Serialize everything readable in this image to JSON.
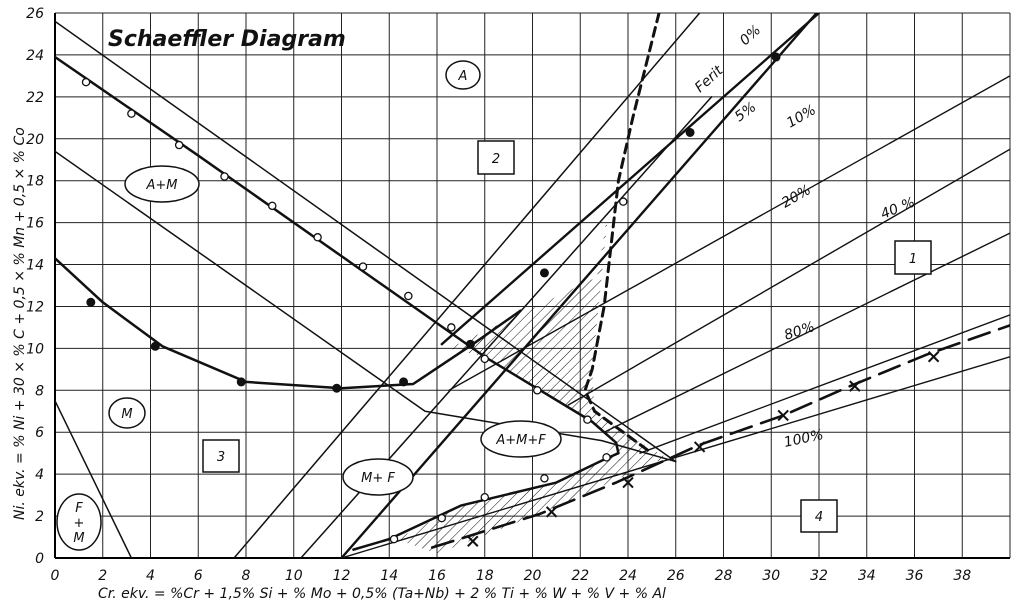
{
  "title": "Schaeffler Diagram",
  "x_axis_label": "Cr. ekv. = %Cr + 1,5% Si + % Mo + 0,5% (Ta+Nb) + 2 % Ti + % W + % V + % Al",
  "y_axis_label": "Ni. ekv. = % Ni + 30 × % C + 0,5 × % Mn + 0,5 × % Co",
  "x_ticks": [
    "0",
    "2",
    "4",
    "6",
    "8",
    "10",
    "12",
    "14",
    "16",
    "18",
    "20",
    "22",
    "24",
    "26",
    "28",
    "30",
    "32",
    "34",
    "36",
    "38"
  ],
  "y_ticks": [
    "0",
    "2",
    "4",
    "6",
    "8",
    "10",
    "12",
    "14",
    "16",
    "18",
    "20",
    "22",
    "24",
    "26"
  ],
  "phase_labels": [
    {
      "id": "A",
      "text": "A"
    },
    {
      "id": "AM",
      "text": "A+M"
    },
    {
      "id": "M",
      "text": "M"
    },
    {
      "id": "FM_top",
      "text": "F"
    },
    {
      "id": "FM_plus",
      "text": "+"
    },
    {
      "id": "FM_bot",
      "text": "M"
    },
    {
      "id": "MF",
      "text": "M+ F"
    },
    {
      "id": "AMF",
      "text": "A+M+F"
    }
  ],
  "zone_numbers": [
    "1",
    "2",
    "3",
    "4"
  ],
  "ferrite_labels": [
    "Ferit",
    "0%",
    "5%",
    "10%",
    "20%",
    "40 %",
    "80%",
    "100%"
  ],
  "chart_data": {
    "type": "diagram",
    "xlim": [
      0,
      40
    ],
    "ylim": [
      0,
      26
    ],
    "grid": true,
    "ferrite_lines": [
      {
        "name": "0%",
        "points": [
          [
            16.2,
            10.2
          ],
          [
            32.0,
            26.0
          ]
        ]
      },
      {
        "name": "5%",
        "points": [
          [
            12.0,
            0.0
          ],
          [
            31.9,
            26.0
          ]
        ]
      },
      {
        "name": "10%",
        "points": [
          [
            16.5,
            8.0
          ],
          [
            40.0,
            23.0
          ]
        ]
      },
      {
        "name": "20%",
        "points": [
          [
            21.5,
            7.3
          ],
          [
            40.0,
            19.5
          ]
        ]
      },
      {
        "name": "40 %",
        "points": [
          [
            23.0,
            6.0
          ],
          [
            40.0,
            15.5
          ]
        ]
      },
      {
        "name": "80%",
        "points": [
          [
            24.5,
            5.0
          ],
          [
            40.0,
            11.6
          ]
        ]
      },
      {
        "name": "100%",
        "points": [
          [
            12.0,
            0.0
          ],
          [
            40.0,
            9.6
          ]
        ]
      }
    ],
    "boundaries": [
      {
        "id": "upper-diagonal",
        "points": [
          [
            0,
            25.6
          ],
          [
            26.0,
            4.6
          ]
        ]
      },
      {
        "id": "austenite-martensite",
        "points": [
          [
            0,
            23.9
          ],
          [
            6,
            19.2
          ],
          [
            12,
            14.4
          ],
          [
            18,
            9.6
          ],
          [
            22.5,
            6.5
          ],
          [
            23.5,
            5.5
          ],
          [
            23.6,
            5.0
          ],
          [
            23,
            4.7
          ],
          [
            21,
            3.6
          ],
          [
            17,
            2.5
          ],
          [
            14,
            0.9
          ],
          [
            12.5,
            0.4
          ]
        ]
      },
      {
        "id": "lower-diagonal",
        "points": [
          [
            0,
            19.4
          ],
          [
            15.5,
            7.0
          ],
          [
            22.9,
            5.6
          ],
          [
            26.0,
            4.6
          ]
        ]
      },
      {
        "id": "martensite-boundary",
        "points": [
          [
            0,
            14.3
          ],
          [
            2,
            12.2
          ],
          [
            4.5,
            10.1
          ],
          [
            8,
            8.4
          ],
          [
            12,
            8.1
          ],
          [
            15,
            8.3
          ],
          [
            17.5,
            10.2
          ],
          [
            19.5,
            11.8
          ]
        ]
      },
      {
        "id": "martensite-ferrite",
        "points": [
          [
            7.5,
            0.0
          ],
          [
            27.0,
            26.0
          ]
        ]
      },
      {
        "id": "martensite-ferrite-left",
        "points": [
          [
            10.3,
            0.0
          ],
          [
            27.5,
            22.0
          ]
        ]
      },
      {
        "id": "fm-boundary",
        "points": [
          [
            0,
            7.5
          ],
          [
            3.2,
            0.0
          ]
        ]
      },
      {
        "id": "cross-line",
        "points": [
          [
            15.8,
            0.5
          ],
          [
            20.3,
            2.1
          ],
          [
            23.5,
            3.6
          ],
          [
            27.0,
            5.4
          ],
          [
            30.5,
            6.8
          ],
          [
            33.3,
            8.2
          ],
          [
            36.5,
            9.7
          ],
          [
            40.0,
            11.1
          ]
        ]
      },
      {
        "id": "dashed-curve",
        "points": [
          [
            25.3,
            26.0
          ],
          [
            24.2,
            21.0
          ],
          [
            23.6,
            18.0
          ],
          [
            23.3,
            15.0
          ],
          [
            23.0,
            12.0
          ],
          [
            22.5,
            9.0
          ],
          [
            22.2,
            8.0
          ],
          [
            22.6,
            7.0
          ],
          [
            23.8,
            6.0
          ],
          [
            25.0,
            5.0
          ]
        ]
      }
    ],
    "open_points": [
      [
        1.3,
        22.7
      ],
      [
        3.2,
        21.2
      ],
      [
        5.2,
        19.7
      ],
      [
        7.1,
        18.2
      ],
      [
        9.1,
        16.8
      ],
      [
        11.0,
        15.3
      ],
      [
        12.9,
        13.9
      ],
      [
        14.8,
        12.5
      ],
      [
        16.6,
        11.0
      ],
      [
        18.0,
        9.5
      ],
      [
        20.2,
        8.0
      ],
      [
        22.3,
        6.6
      ],
      [
        23.1,
        4.8
      ],
      [
        20.5,
        3.8
      ],
      [
        18.0,
        2.9
      ],
      [
        16.2,
        1.9
      ],
      [
        14.2,
        0.9
      ],
      [
        23.8,
        17.0
      ]
    ],
    "filled_points": [
      [
        1.5,
        12.2
      ],
      [
        4.2,
        10.1
      ],
      [
        7.8,
        8.4
      ],
      [
        11.8,
        8.1
      ],
      [
        14.6,
        8.4
      ],
      [
        17.4,
        10.2
      ],
      [
        20.5,
        13.6
      ],
      [
        26.6,
        20.3
      ],
      [
        30.2,
        23.9
      ]
    ],
    "cross_points": [
      [
        17.5,
        0.8
      ],
      [
        20.8,
        2.2
      ],
      [
        24.0,
        3.6
      ],
      [
        27.0,
        5.3
      ],
      [
        30.5,
        6.8
      ],
      [
        33.5,
        8.2
      ],
      [
        36.8,
        9.6
      ]
    ]
  }
}
